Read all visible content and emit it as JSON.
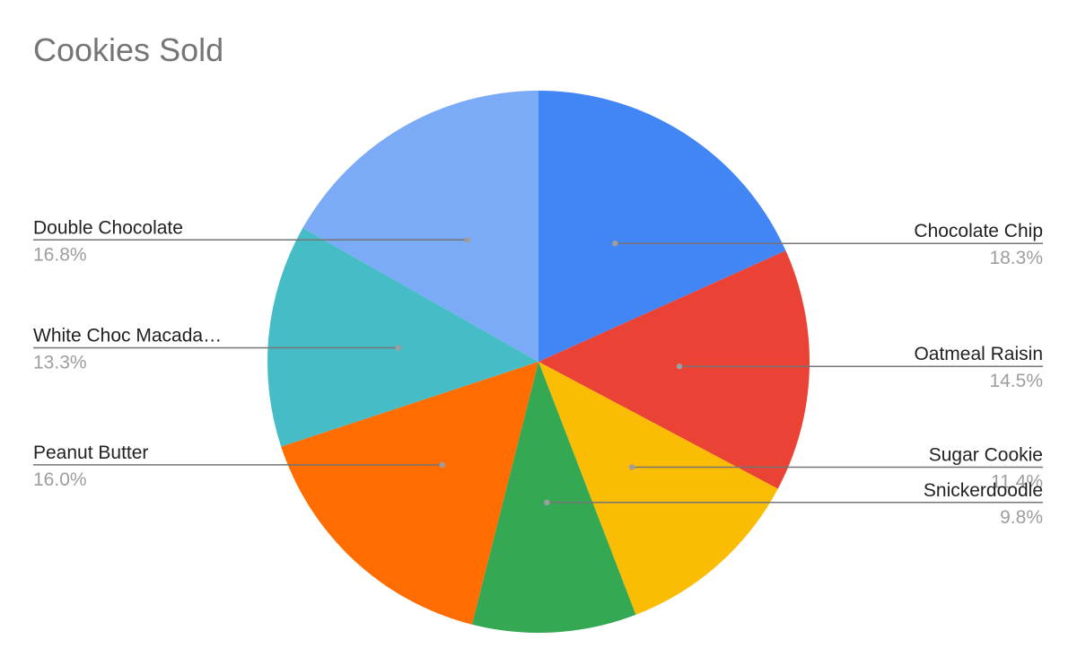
{
  "chart_data": {
    "type": "pie",
    "title": "Cookies Sold",
    "start_angle_deg": 0,
    "direction": "clockwise",
    "slices": [
      {
        "label": "Chocolate Chip",
        "display_label": "Chocolate Chip",
        "percent": 18.3,
        "percent_label": "18.3%",
        "color": "#4285f4",
        "label_side": "right"
      },
      {
        "label": "Oatmeal Raisin",
        "display_label": "Oatmeal Raisin",
        "percent": 14.5,
        "percent_label": "14.5%",
        "color": "#ea4335",
        "label_side": "right"
      },
      {
        "label": "Sugar Cookie",
        "display_label": "Sugar Cookie",
        "percent": 11.4,
        "percent_label": "11.4%",
        "color": "#fbbc04",
        "label_side": "right"
      },
      {
        "label": "Snickerdoodle",
        "display_label": "Snickerdoodle",
        "percent": 9.8,
        "percent_label": "9.8%",
        "color": "#34a853",
        "label_side": "right"
      },
      {
        "label": "Peanut Butter",
        "display_label": "Peanut Butter",
        "percent": 16.0,
        "percent_label": "16.0%",
        "color": "#ff6d01",
        "label_side": "left"
      },
      {
        "label": "White Choc Macadamia",
        "display_label": "White Choc Macada…",
        "percent": 13.3,
        "percent_label": "13.3%",
        "color": "#46bdc6",
        "label_side": "left"
      },
      {
        "label": "Double Chocolate",
        "display_label": "Double Chocolate",
        "percent": 16.8,
        "percent_label": "16.8%",
        "color": "#7baaf7",
        "label_side": "left"
      }
    ]
  }
}
